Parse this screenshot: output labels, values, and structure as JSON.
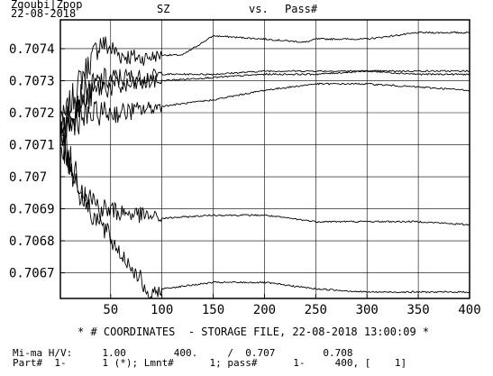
{
  "header": {
    "program": "Zgoubi|Zpop",
    "date": "22-08-2018",
    "var": "SZ",
    "vs": "vs.",
    "xvar": "Pass#"
  },
  "footer": {
    "line1": "* # COORDINATES  - STORAGE FILE, 22-08-2018 13:00:09 *",
    "line2a": "Mi-ma H/V:     1.00        400.     /  0.707        0.708",
    "line3": "Part#  1-      1 (*); Lmnt#      1; pass#      1-     400, [    1]"
  },
  "chart_data": {
    "type": "line",
    "title": "SZ   vs.   Pass#",
    "xlabel": "Pass#",
    "ylabel": "SZ",
    "xlim": [
      1,
      400
    ],
    "ylim": [
      0.70662,
      0.70749
    ],
    "x_ticks": [
      50,
      100,
      150,
      200,
      250,
      300,
      350,
      400
    ],
    "x_tick_labels": [
      "50",
      "100",
      "150",
      "200",
      "250",
      "300",
      "350",
      "400"
    ],
    "y_ticks": [
      0.7067,
      0.7068,
      0.7069,
      0.707,
      0.7071,
      0.7072,
      0.7073,
      0.7074
    ],
    "y_tick_labels": [
      "0.7067",
      "0.7068",
      "0.7069",
      "0.707",
      "0.7071",
      "0.7072",
      "0.7073",
      "0.7074"
    ],
    "grid": true,
    "series": [
      {
        "color": "#000000",
        "x": [
          1,
          20,
          40,
          60,
          80,
          100,
          120,
          140,
          150,
          200,
          240,
          250,
          300,
          350,
          400
        ],
        "y": [
          0.70715,
          0.7073,
          0.70742,
          0.70738,
          0.70737,
          0.70738,
          0.70738,
          0.70742,
          0.70744,
          0.70743,
          0.70742,
          0.70743,
          0.70743,
          0.70745,
          0.70745
        ]
      },
      {
        "color": "#000000",
        "x": [
          1,
          20,
          40,
          60,
          80,
          100,
          150,
          200,
          250,
          300,
          350,
          400
        ],
        "y": [
          0.70715,
          0.70725,
          0.7073,
          0.70731,
          0.70731,
          0.70732,
          0.70732,
          0.70733,
          0.70733,
          0.70733,
          0.70733,
          0.70733
        ]
      },
      {
        "color": "#000000",
        "x": [
          1,
          20,
          40,
          60,
          80,
          100,
          150,
          200,
          250,
          300,
          350,
          400
        ],
        "y": [
          0.70715,
          0.70722,
          0.70728,
          0.70728,
          0.70729,
          0.7073,
          0.70731,
          0.70732,
          0.70732,
          0.70733,
          0.70732,
          0.70732
        ]
      },
      {
        "color": "#000000",
        "x": [
          1,
          20,
          40,
          60,
          80,
          100,
          150,
          200,
          250,
          300,
          350,
          400
        ],
        "y": [
          0.70715,
          0.70718,
          0.7072,
          0.7072,
          0.70721,
          0.70722,
          0.70724,
          0.70727,
          0.70729,
          0.70729,
          0.70728,
          0.70727
        ]
      },
      {
        "color": "#000000",
        "x": [
          1,
          20,
          40,
          60,
          80,
          100,
          150,
          200,
          250,
          300,
          350,
          400
        ],
        "y": [
          0.70712,
          0.70698,
          0.7069,
          0.70689,
          0.70688,
          0.70687,
          0.70688,
          0.70688,
          0.70686,
          0.70686,
          0.70686,
          0.70685
        ]
      },
      {
        "color": "#000000",
        "x": [
          1,
          20,
          40,
          60,
          80,
          85,
          100,
          150,
          200,
          250,
          300,
          350,
          400
        ],
        "y": [
          0.70712,
          0.70695,
          0.70685,
          0.70676,
          0.70668,
          0.70662,
          0.70665,
          0.70667,
          0.70667,
          0.70665,
          0.70664,
          0.70664,
          0.70664
        ]
      }
    ]
  }
}
